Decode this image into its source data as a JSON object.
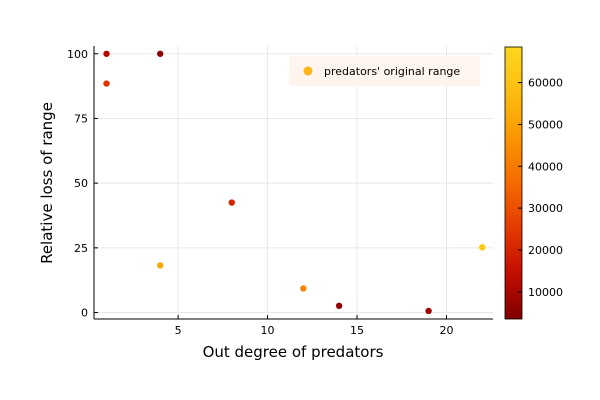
{
  "chart_data": {
    "type": "scatter",
    "title": "",
    "xlabel": "Out degree of predators",
    "ylabel": "Relative loss of range",
    "xlim": [
      0.3,
      22.6
    ],
    "ylim": [
      -2.5,
      103
    ],
    "xticks": [
      5,
      10,
      15,
      20
    ],
    "yticks": [
      0,
      25,
      50,
      75,
      100
    ],
    "grid": true,
    "legend": {
      "position": "top-right",
      "label": "predators' original range",
      "color": "#fcb418"
    },
    "colorbar": {
      "min": 3500,
      "max": 68500,
      "ticks": [
        10000,
        20000,
        30000,
        40000,
        50000,
        60000
      ],
      "colormap": [
        "#800000",
        "#c20c00",
        "#e43a00",
        "#f66a00",
        "#fb9600",
        "#fcbd10",
        "#ffd51f"
      ]
    },
    "points": [
      {
        "x": 1,
        "y": 100,
        "c": 12000
      },
      {
        "x": 1,
        "y": 88.5,
        "c": 24000
      },
      {
        "x": 4,
        "y": 100,
        "c": 5000
      },
      {
        "x": 4,
        "y": 18.2,
        "c": 52000
      },
      {
        "x": 8,
        "y": 42.5,
        "c": 20000
      },
      {
        "x": 12,
        "y": 9.3,
        "c": 43000
      },
      {
        "x": 14,
        "y": 2.6,
        "c": 6000
      },
      {
        "x": 19,
        "y": 0.6,
        "c": 9000
      },
      {
        "x": 22,
        "y": 25.2,
        "c": 63000
      }
    ]
  }
}
